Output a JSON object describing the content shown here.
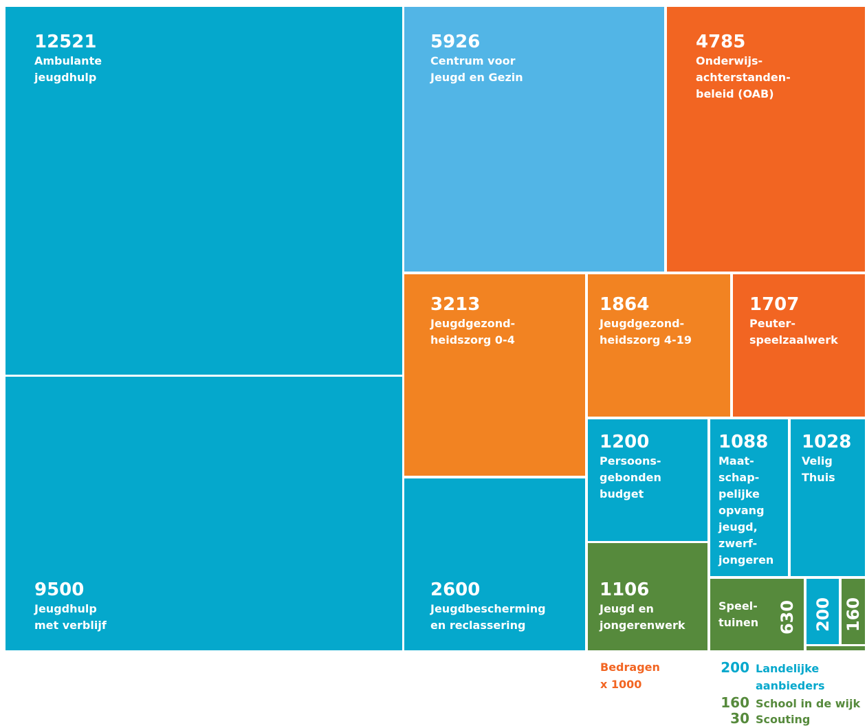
{
  "chart_data": {
    "type": "treemap",
    "note": "Bedragen\nx 1000",
    "note_color": "#f26522",
    "items": [
      {
        "value": 12521,
        "label": "Ambulante\njeugdhulp",
        "color": "#05a8cc"
      },
      {
        "value": 9500,
        "label": "Jeugdhulp\nmet verblijf",
        "color": "#05a8cc"
      },
      {
        "value": 5926,
        "label": "Centrum voor\nJeugd en Gezin",
        "color": "#52b5e6"
      },
      {
        "value": 4785,
        "label": "Onderwijs-\nachterstanden-\nbeleid (OAB)",
        "color": "#f26522"
      },
      {
        "value": 3213,
        "label": "Jeugdgezond-\nheidszorg 0-4",
        "color": "#f28322"
      },
      {
        "value": 2600,
        "label": "Jeugdbescherming\nen reclassering",
        "color": "#05a8cc"
      },
      {
        "value": 1864,
        "label": "Jeugdgezond-\nheidszorg 4-19",
        "color": "#f28322"
      },
      {
        "value": 1707,
        "label": "Peuter-\nspeelzaalwerk",
        "color": "#f26522"
      },
      {
        "value": 1200,
        "label": "Persoons-\ngebonden\nbudget",
        "color": "#05a8cc"
      },
      {
        "value": 1106,
        "label": "Jeugd en\njongerenwerk",
        "color": "#568a3c"
      },
      {
        "value": 1088,
        "label": "Maat-\nschap-\npelijke\nopvang\njeugd,\nzwerf-\njongeren",
        "color": "#05a8cc"
      },
      {
        "value": 1028,
        "label": "Velig\nThuis",
        "color": "#05a8cc"
      },
      {
        "value": 630,
        "label": "Speel-\ntuinen",
        "color": "#568a3c"
      },
      {
        "value": 200,
        "label": "Landelijke\naanbieders",
        "color": "#05a8cc"
      },
      {
        "value": 160,
        "label": "School in de wijk",
        "color": "#568a3c"
      },
      {
        "value": 30,
        "label": "Scouting",
        "color": "#568a3c"
      }
    ]
  }
}
